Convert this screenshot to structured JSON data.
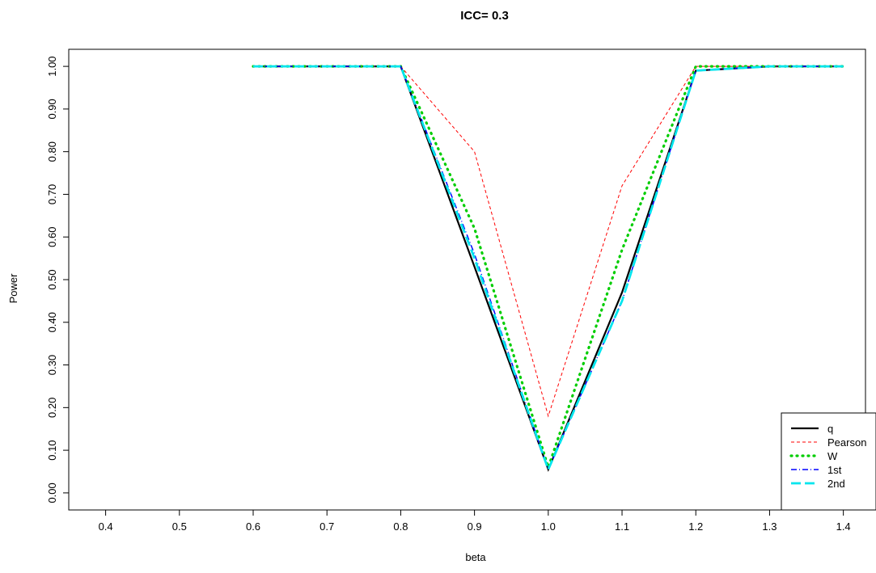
{
  "chart_data": {
    "type": "line",
    "title": "ICC= 0.3",
    "xlabel": "beta",
    "ylabel": "Power",
    "xlim": [
      0.35,
      1.43
    ],
    "ylim": [
      -0.04,
      1.04
    ],
    "x_ticks": [
      "0.4",
      "0.5",
      "0.6",
      "0.7",
      "0.8",
      "0.9",
      "1.0",
      "1.1",
      "1.2",
      "1.3",
      "1.4"
    ],
    "y_ticks": [
      "0.00",
      "0.10",
      "0.20",
      "0.30",
      "0.40",
      "0.50",
      "0.60",
      "0.70",
      "0.80",
      "0.90",
      "1.00"
    ],
    "grid": false,
    "legend_position": "bottom-right",
    "x": [
      0.6,
      0.7,
      0.8,
      0.9,
      1.0,
      1.1,
      1.2,
      1.3,
      1.4
    ],
    "series": [
      {
        "name": "q",
        "color": "#000000",
        "dash": "",
        "width": 2.2,
        "values": [
          1.0,
          1.0,
          1.0,
          0.53,
          0.055,
          0.47,
          0.99,
          1.0,
          1.0
        ]
      },
      {
        "name": "Pearson",
        "color": "#ff0000",
        "dash": "4,3",
        "width": 1,
        "values": [
          1.0,
          1.0,
          1.0,
          0.8,
          0.18,
          0.72,
          1.0,
          1.0,
          1.0
        ]
      },
      {
        "name": "W",
        "color": "#00cd00",
        "dash": "1,6",
        "width": 3.2,
        "values": [
          1.0,
          1.0,
          1.0,
          0.62,
          0.06,
          0.57,
          1.0,
          1.0,
          1.0
        ]
      },
      {
        "name": "1st",
        "color": "#0000ff",
        "dash": "7,3,1,3",
        "width": 1.5,
        "values": [
          1.0,
          1.0,
          1.0,
          0.56,
          0.055,
          0.45,
          0.99,
          1.0,
          1.0
        ]
      },
      {
        "name": "2nd",
        "color": "#00e5ee",
        "dash": "12,5",
        "width": 2.8,
        "values": [
          1.0,
          1.0,
          1.0,
          0.55,
          0.055,
          0.45,
          0.99,
          1.0,
          1.0
        ]
      }
    ]
  }
}
